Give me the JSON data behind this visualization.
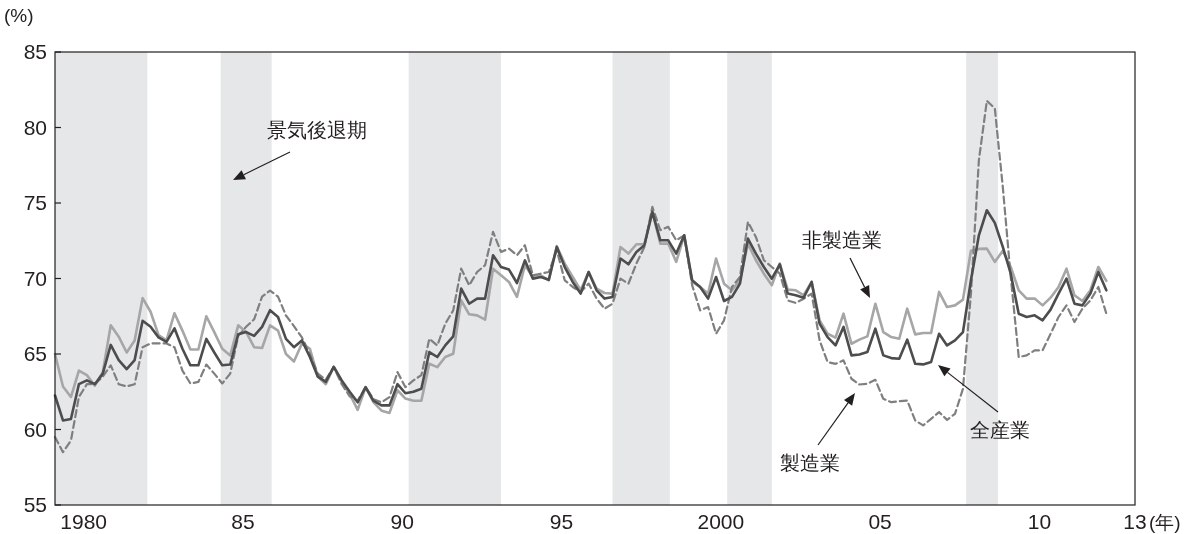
{
  "chart_data": {
    "type": "line",
    "ylabel": "(%)",
    "xlabel": "(年)",
    "xlim": [
      1979.1,
      2013
    ],
    "ylim": [
      55,
      85
    ],
    "xticks": [
      {
        "value": 1980,
        "label": "1980"
      },
      {
        "value": 1985,
        "label": "85"
      },
      {
        "value": 1990,
        "label": "90"
      },
      {
        "value": 1995,
        "label": "95"
      },
      {
        "value": 2000,
        "label": "2000"
      },
      {
        "value": 2005,
        "label": "05"
      },
      {
        "value": 2010,
        "label": "10"
      },
      {
        "value": 2013,
        "label": "13"
      }
    ],
    "yticks": [
      55,
      60,
      65,
      70,
      75,
      80,
      85
    ],
    "grid": false,
    "marker": "none",
    "x": [
      1979.1,
      1979.35,
      1979.6,
      1979.85,
      1980.1,
      1980.35,
      1980.6,
      1980.85,
      1981.1,
      1981.35,
      1981.6,
      1981.85,
      1982.1,
      1982.35,
      1982.6,
      1982.85,
      1983.1,
      1983.35,
      1983.6,
      1983.85,
      1984.1,
      1984.35,
      1984.6,
      1984.85,
      1985.1,
      1985.35,
      1985.6,
      1985.85,
      1986.1,
      1986.35,
      1986.6,
      1986.85,
      1987.1,
      1987.35,
      1987.6,
      1987.85,
      1988.1,
      1988.35,
      1988.6,
      1988.85,
      1989.1,
      1989.35,
      1989.6,
      1989.85,
      1990.1,
      1990.35,
      1990.6,
      1990.85,
      1991.1,
      1991.35,
      1991.6,
      1991.85,
      1992.1,
      1992.35,
      1992.6,
      1992.85,
      1993.1,
      1993.35,
      1993.6,
      1993.85,
      1994.1,
      1994.35,
      1994.6,
      1994.85,
      1995.1,
      1995.35,
      1995.6,
      1995.85,
      1996.1,
      1996.35,
      1996.6,
      1996.85,
      1997.1,
      1997.35,
      1997.6,
      1997.85,
      1998.1,
      1998.35,
      1998.6,
      1998.85,
      1999.1,
      1999.35,
      1999.6,
      1999.85,
      2000.1,
      2000.35,
      2000.6,
      2000.85,
      2001.1,
      2001.35,
      2001.6,
      2001.85,
      2002.1,
      2002.35,
      2002.6,
      2002.85,
      2003.1,
      2003.35,
      2003.6,
      2003.85,
      2004.1,
      2004.35,
      2004.6,
      2004.85,
      2005.1,
      2005.35,
      2005.6,
      2005.85,
      2006.1,
      2006.35,
      2006.6,
      2006.85,
      2007.1,
      2007.35,
      2007.6,
      2007.85,
      2008.1,
      2008.35,
      2008.6,
      2008.85,
      2009.1,
      2009.35,
      2009.6,
      2009.85,
      2010.1,
      2010.35,
      2010.6,
      2010.85,
      2011.1,
      2011.35,
      2011.6,
      2011.85,
      2012.1
    ],
    "series": [
      {
        "color": "#a6a6a6",
        "line_style": "solid",
        "values": [
          65.0,
          62.85,
          62.15,
          63.9,
          63.6,
          62.9,
          63.8,
          66.9,
          66.15,
          65.1,
          65.9,
          68.7,
          67.8,
          66.25,
          65.9,
          67.7,
          66.55,
          65.3,
          65.3,
          67.5,
          66.45,
          65.35,
          64.9,
          66.9,
          66.45,
          65.45,
          65.4,
          66.9,
          66.55,
          65.0,
          64.5,
          65.7,
          65.35,
          63.5,
          63.0,
          64.15,
          63.15,
          62.35,
          61.3,
          62.8,
          61.8,
          61.25,
          61.1,
          62.6,
          62.05,
          61.9,
          61.9,
          64.35,
          64.13,
          64.8,
          65.02,
          68.55,
          67.63,
          67.56,
          67.27,
          70.65,
          70.21,
          69.77,
          68.78,
          70.88,
          70.1,
          70.21,
          69.88,
          72.14,
          70.99,
          70.1,
          69.22,
          70.43,
          69.33,
          69.04,
          69.0,
          72.09,
          71.65,
          72.27,
          72.27,
          74.41,
          72.31,
          72.31,
          71.1,
          72.86,
          69.77,
          69.44,
          69.0,
          71.32,
          69.66,
          69.22,
          69.88,
          72.31,
          71.21,
          70.32,
          69.55,
          70.99,
          69.26,
          69.22,
          68.89,
          69.77,
          67.23,
          66.34,
          66.08,
          67.67,
          65.68,
          65.95,
          66.17,
          68.33,
          66.45,
          66.12,
          66.01,
          68.0,
          66.3,
          66.39,
          66.39,
          69.11,
          68.11,
          68.22,
          68.6,
          71.83,
          71.96,
          71.98,
          71.1,
          71.83,
          70.76,
          69.22,
          68.67,
          68.67,
          68.22,
          68.73,
          69.44,
          70.65,
          68.89,
          68.51,
          69.22,
          70.76,
          69.84
        ]
      },
      {
        "color": "#7f7f7f",
        "line_style": "dashed",
        "values": [
          59.5,
          58.5,
          59.27,
          62.15,
          63.0,
          63.0,
          63.5,
          64.25,
          63.0,
          62.85,
          63.0,
          65.45,
          65.7,
          65.7,
          65.7,
          65.45,
          63.9,
          63.05,
          63.15,
          64.3,
          63.7,
          63.05,
          63.7,
          66.2,
          66.8,
          67.3,
          68.8,
          69.2,
          68.8,
          67.55,
          66.85,
          66.1,
          65.0,
          63.7,
          63.3,
          64.15,
          63.0,
          62.2,
          61.9,
          62.8,
          62.0,
          61.8,
          62.15,
          63.8,
          62.8,
          63.25,
          63.6,
          66.01,
          65.57,
          67.0,
          67.89,
          70.65,
          69.55,
          70.43,
          70.88,
          73.09,
          71.76,
          71.98,
          71.54,
          72.2,
          70.21,
          70.32,
          70.43,
          71.87,
          69.88,
          69.44,
          69.11,
          69.66,
          68.67,
          68.0,
          68.33,
          69.99,
          69.66,
          70.99,
          72.09,
          74.74,
          73.2,
          73.42,
          72.53,
          72.86,
          69.55,
          67.89,
          68.11,
          66.34,
          67.23,
          69.44,
          70.1,
          73.75,
          72.75,
          71.21,
          70.76,
          70.32,
          68.55,
          68.38,
          68.66,
          69.0,
          65.9,
          64.47,
          64.35,
          64.58,
          63.36,
          62.98,
          63.03,
          63.29,
          62.03,
          61.81,
          61.88,
          61.92,
          60.6,
          60.27,
          60.71,
          61.15,
          60.64,
          61.04,
          62.7,
          69.0,
          77.84,
          81.77,
          81.26,
          76.07,
          70.1,
          64.8,
          64.91,
          65.24,
          65.24,
          66.34,
          67.45,
          68.22,
          67.12,
          68.0,
          68.55,
          69.44,
          67.67
        ]
      },
      {
        "color": "#4d4d4d",
        "line_style": "solid",
        "values": [
          62.25,
          60.6,
          60.7,
          63.0,
          63.25,
          63.0,
          63.7,
          65.6,
          64.6,
          64.0,
          64.6,
          67.2,
          66.8,
          66.1,
          65.8,
          66.7,
          65.35,
          64.25,
          64.25,
          66.0,
          65.1,
          64.25,
          64.3,
          66.3,
          66.45,
          66.2,
          66.8,
          67.9,
          67.45,
          66.0,
          65.45,
          65.9,
          64.8,
          63.5,
          63.15,
          64.15,
          63.25,
          62.5,
          61.8,
          62.8,
          61.9,
          61.6,
          61.6,
          63.0,
          62.4,
          62.5,
          62.7,
          65.13,
          64.8,
          65.57,
          66.17,
          69.33,
          68.33,
          68.67,
          68.67,
          71.54,
          70.76,
          70.59,
          69.7,
          71.2,
          69.99,
          70.1,
          69.92,
          72.09,
          70.76,
          69.77,
          69.0,
          70.43,
          69.22,
          68.67,
          68.78,
          71.32,
          70.94,
          71.76,
          72.2,
          74.41,
          72.53,
          72.53,
          71.65,
          72.86,
          69.88,
          69.44,
          68.67,
          70.1,
          68.51,
          68.78,
          69.66,
          72.64,
          71.65,
          70.76,
          69.99,
          70.94,
          69.0,
          68.89,
          68.73,
          69.77,
          67.01,
          66.12,
          65.57,
          66.79,
          64.91,
          64.97,
          65.13,
          66.68,
          64.91,
          64.73,
          64.69,
          65.95,
          64.35,
          64.31,
          64.47,
          66.34,
          65.57,
          65.9,
          66.45,
          69.88,
          72.86,
          74.52,
          73.68,
          72.09,
          70.32,
          67.67,
          67.45,
          67.56,
          67.23,
          67.94,
          69.0,
          69.99,
          68.33,
          68.22,
          69.0,
          70.43,
          69.22
        ]
      }
    ],
    "bands": [
      {
        "axis": "x",
        "from": 1979.1,
        "to": 1982.0,
        "color": "#e6e7e9"
      },
      {
        "axis": "x",
        "from": 1984.3,
        "to": 1985.9,
        "color": "#e6e7e9"
      },
      {
        "axis": "x",
        "from": 1990.2,
        "to": 1993.1,
        "color": "#e6e7e9"
      },
      {
        "axis": "x",
        "from": 1996.6,
        "to": 1998.4,
        "color": "#e6e7e9"
      },
      {
        "axis": "x",
        "from": 2000.2,
        "to": 2001.6,
        "color": "#e6e7e9"
      },
      {
        "axis": "x",
        "from": 2007.7,
        "to": 2008.7,
        "color": "#e6e7e9"
      }
    ],
    "annotations": [
      "景気後退期",
      "非製造業",
      "全産業",
      "製造業"
    ]
  }
}
